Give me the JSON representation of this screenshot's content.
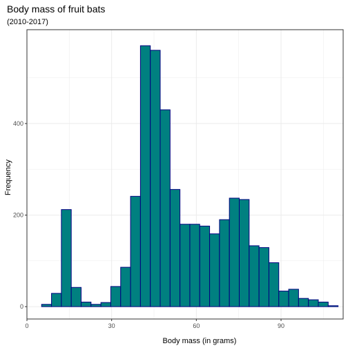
{
  "chart_data": {
    "type": "bar",
    "title": "Body mass of fruit bats",
    "subtitle": "(2010-2017)",
    "xlabel": "Body mass (in grams)",
    "ylabel": "Frequency",
    "xlim": [
      0,
      112
    ],
    "ylim": [
      -27,
      605
    ],
    "x_ticks": [
      0,
      30,
      60,
      90
    ],
    "y_ticks": [
      0,
      200,
      400
    ],
    "bin_width": 3.5,
    "bins": [
      {
        "x_start": 5.2,
        "count": 5
      },
      {
        "x_start": 8.7,
        "count": 29
      },
      {
        "x_start": 12.2,
        "count": 212
      },
      {
        "x_start": 15.7,
        "count": 42
      },
      {
        "x_start": 19.2,
        "count": 10
      },
      {
        "x_start": 22.7,
        "count": 5
      },
      {
        "x_start": 26.2,
        "count": 9
      },
      {
        "x_start": 29.7,
        "count": 44
      },
      {
        "x_start": 33.2,
        "count": 86
      },
      {
        "x_start": 36.7,
        "count": 241
      },
      {
        "x_start": 40.2,
        "count": 570
      },
      {
        "x_start": 43.7,
        "count": 560
      },
      {
        "x_start": 47.2,
        "count": 430
      },
      {
        "x_start": 50.7,
        "count": 256
      },
      {
        "x_start": 54.2,
        "count": 180
      },
      {
        "x_start": 57.7,
        "count": 180
      },
      {
        "x_start": 61.2,
        "count": 176
      },
      {
        "x_start": 64.7,
        "count": 159
      },
      {
        "x_start": 68.2,
        "count": 190
      },
      {
        "x_start": 71.7,
        "count": 237
      },
      {
        "x_start": 75.2,
        "count": 234
      },
      {
        "x_start": 78.7,
        "count": 133
      },
      {
        "x_start": 82.2,
        "count": 129
      },
      {
        "x_start": 85.7,
        "count": 96
      },
      {
        "x_start": 89.2,
        "count": 34
      },
      {
        "x_start": 92.7,
        "count": 38
      },
      {
        "x_start": 96.2,
        "count": 18
      },
      {
        "x_start": 99.7,
        "count": 15
      },
      {
        "x_start": 103.2,
        "count": 10
      },
      {
        "x_start": 106.7,
        "count": 2
      }
    ],
    "grid": true,
    "colors": {
      "fill": "#008080",
      "outline": "#000080",
      "grid": "#ebebeb",
      "panel_border": "#333333"
    }
  }
}
